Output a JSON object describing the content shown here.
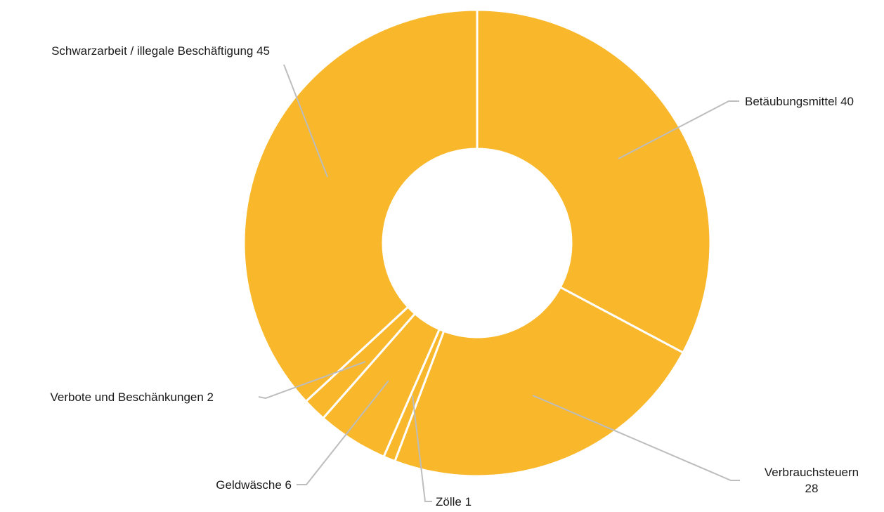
{
  "chart_data": {
    "type": "pie",
    "variant": "donut",
    "color": "#F9B82B",
    "separator_color": "#FFFFFF",
    "leader_color": "#BDBDBD",
    "slices": [
      {
        "label": "Betäubungsmittel",
        "value": 40
      },
      {
        "label": "Verbrauchsteuern",
        "value": 28
      },
      {
        "label": "Zölle",
        "value": 1
      },
      {
        "label": "Geldwäsche",
        "value": 6
      },
      {
        "label": "Verbote und Beschänkungen",
        "value": 2
      },
      {
        "label": "Schwarzarbeit / illegale Beschäftigung",
        "value": 45
      }
    ]
  }
}
